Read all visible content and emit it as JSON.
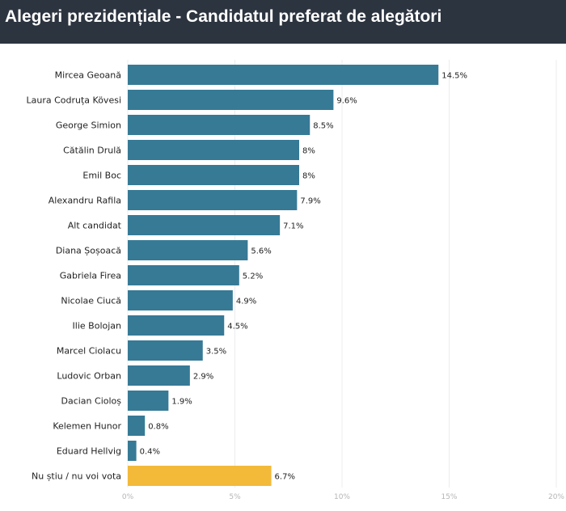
{
  "chart_data": {
    "type": "bar",
    "orientation": "horizontal",
    "title": "Alegeri prezidențiale - Candidatul preferat de alegători",
    "categories": [
      "Mircea Geoană",
      "Laura Codruța Kövesi",
      "George Simion",
      "Cătălin Drulă",
      "Emil Boc",
      "Alexandru Rafila",
      "Alt candidat",
      "Diana Șoșoacă",
      "Gabriela Firea",
      "Nicolae Ciucă",
      "Ilie Bolojan",
      "Marcel Ciolacu",
      "Ludovic Orban",
      "Dacian Cioloș",
      "Kelemen Hunor",
      "Eduard Hellvig",
      "Nu știu / nu voi vota"
    ],
    "values": [
      14.5,
      9.6,
      8.5,
      8,
      8,
      7.9,
      7.1,
      5.6,
      5.2,
      4.9,
      4.5,
      3.5,
      2.9,
      1.9,
      0.8,
      0.4,
      6.7
    ],
    "value_labels": [
      "14.5%",
      "9.6%",
      "8.5%",
      "8%",
      "8%",
      "7.9%",
      "7.1%",
      "5.6%",
      "5.2%",
      "4.9%",
      "4.5%",
      "3.5%",
      "2.9%",
      "1.9%",
      "0.8%",
      "0.4%",
      "6.7%"
    ],
    "xlim": [
      0,
      20
    ],
    "xticks": [
      0,
      5,
      10,
      15,
      20
    ],
    "xtick_labels": [
      "0%",
      "5%",
      "10%",
      "15%",
      "20%"
    ],
    "grid": true,
    "colors": {
      "bar": "#367a96",
      "highlight": "#f3b939",
      "header_bg": "#2c3440"
    },
    "highlight_categories": [
      "Nu știu / nu voi vota"
    ]
  }
}
